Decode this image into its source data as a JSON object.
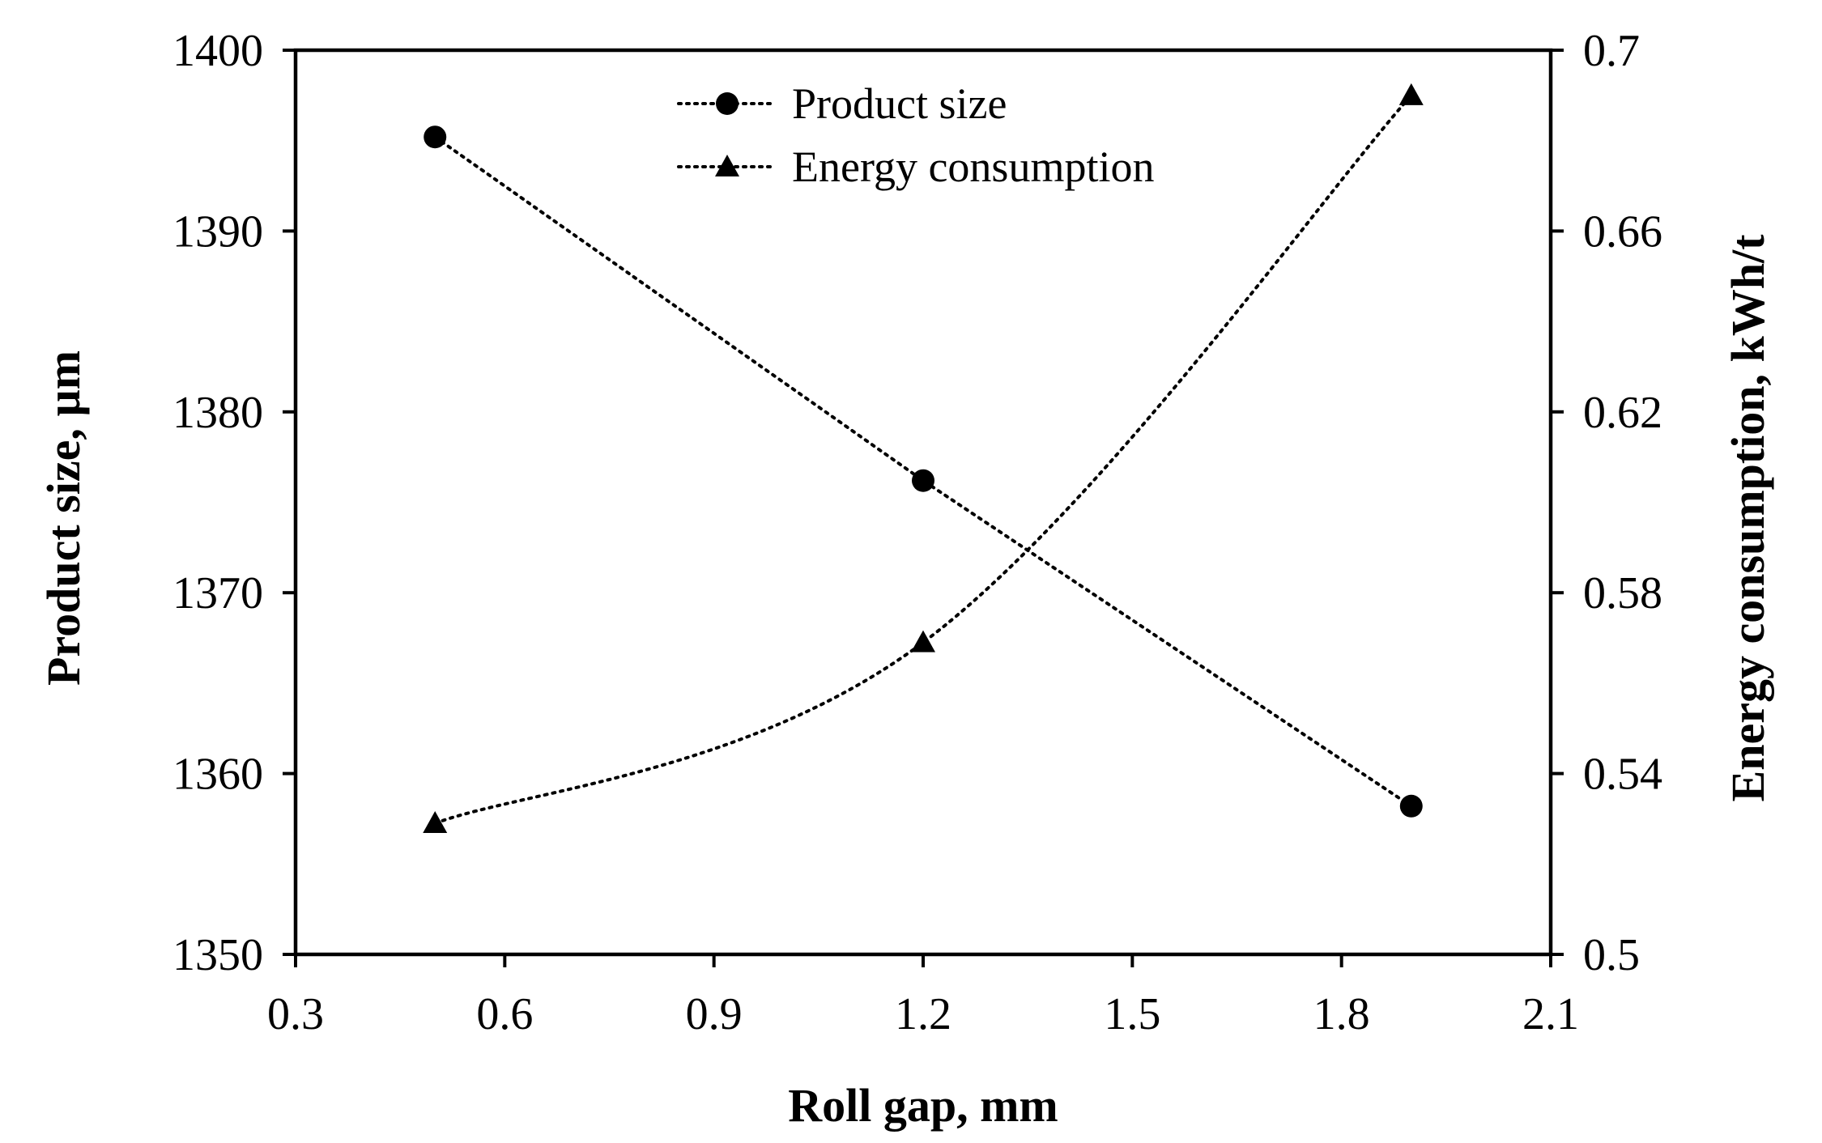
{
  "chart_data": {
    "type": "line",
    "title": "",
    "xlabel": "Roll gap, mm",
    "ylabel": "Product size, µm",
    "y2label": "Energy consumption, kWh/t",
    "xlim": [
      0.3,
      2.1
    ],
    "ylim": [
      1350,
      1400
    ],
    "y2lim": [
      0.5,
      0.7
    ],
    "x_ticks": [
      "0.3",
      "0.6",
      "0.9",
      "1.2",
      "1.5",
      "1.8",
      "2.1"
    ],
    "y_ticks": [
      "1350",
      "1360",
      "1370",
      "1380",
      "1390",
      "1400"
    ],
    "y2_ticks": [
      "0.5",
      "0.54",
      "0.58",
      "0.62",
      "0.66",
      "0.7"
    ],
    "grid": false,
    "legend_position": "top-center",
    "series": [
      {
        "name": "Product size",
        "axis": "left",
        "marker": "circle",
        "line_style": "dotted",
        "smooth": false,
        "x": [
          0.5,
          1.2,
          1.9
        ],
        "values": [
          1395.2,
          1376.2,
          1358.2
        ]
      },
      {
        "name": "Energy consumption",
        "axis": "right",
        "marker": "triangle",
        "line_style": "dotted",
        "smooth": true,
        "x": [
          0.5,
          1.2,
          1.9
        ],
        "values": [
          0.529,
          0.569,
          0.69
        ]
      }
    ]
  }
}
